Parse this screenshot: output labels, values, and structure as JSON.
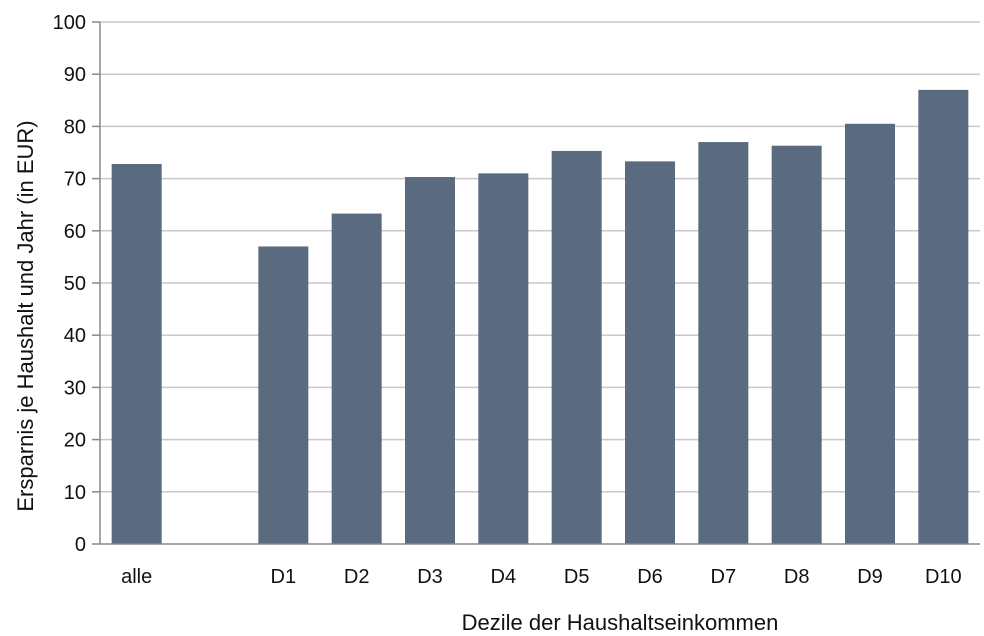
{
  "chart_data": {
    "type": "bar",
    "categories": [
      "alle",
      "",
      "D1",
      "D2",
      "D3",
      "D4",
      "D5",
      "D6",
      "D7",
      "D8",
      "D9",
      "D10"
    ],
    "values": [
      72.8,
      null,
      57.0,
      63.3,
      70.3,
      71.0,
      75.3,
      73.3,
      77.0,
      76.3,
      80.5,
      87.0
    ],
    "xlabel": "Dezile der Haushaltseinkommen",
    "ylabel": "Ersparnis je Haushalt und Jahr (in EUR)",
    "ylim": [
      0,
      100
    ],
    "yticks": [
      0,
      10,
      20,
      30,
      40,
      50,
      60,
      70,
      80,
      90,
      100
    ],
    "bar_color": "#5a6b80",
    "grid": true
  }
}
